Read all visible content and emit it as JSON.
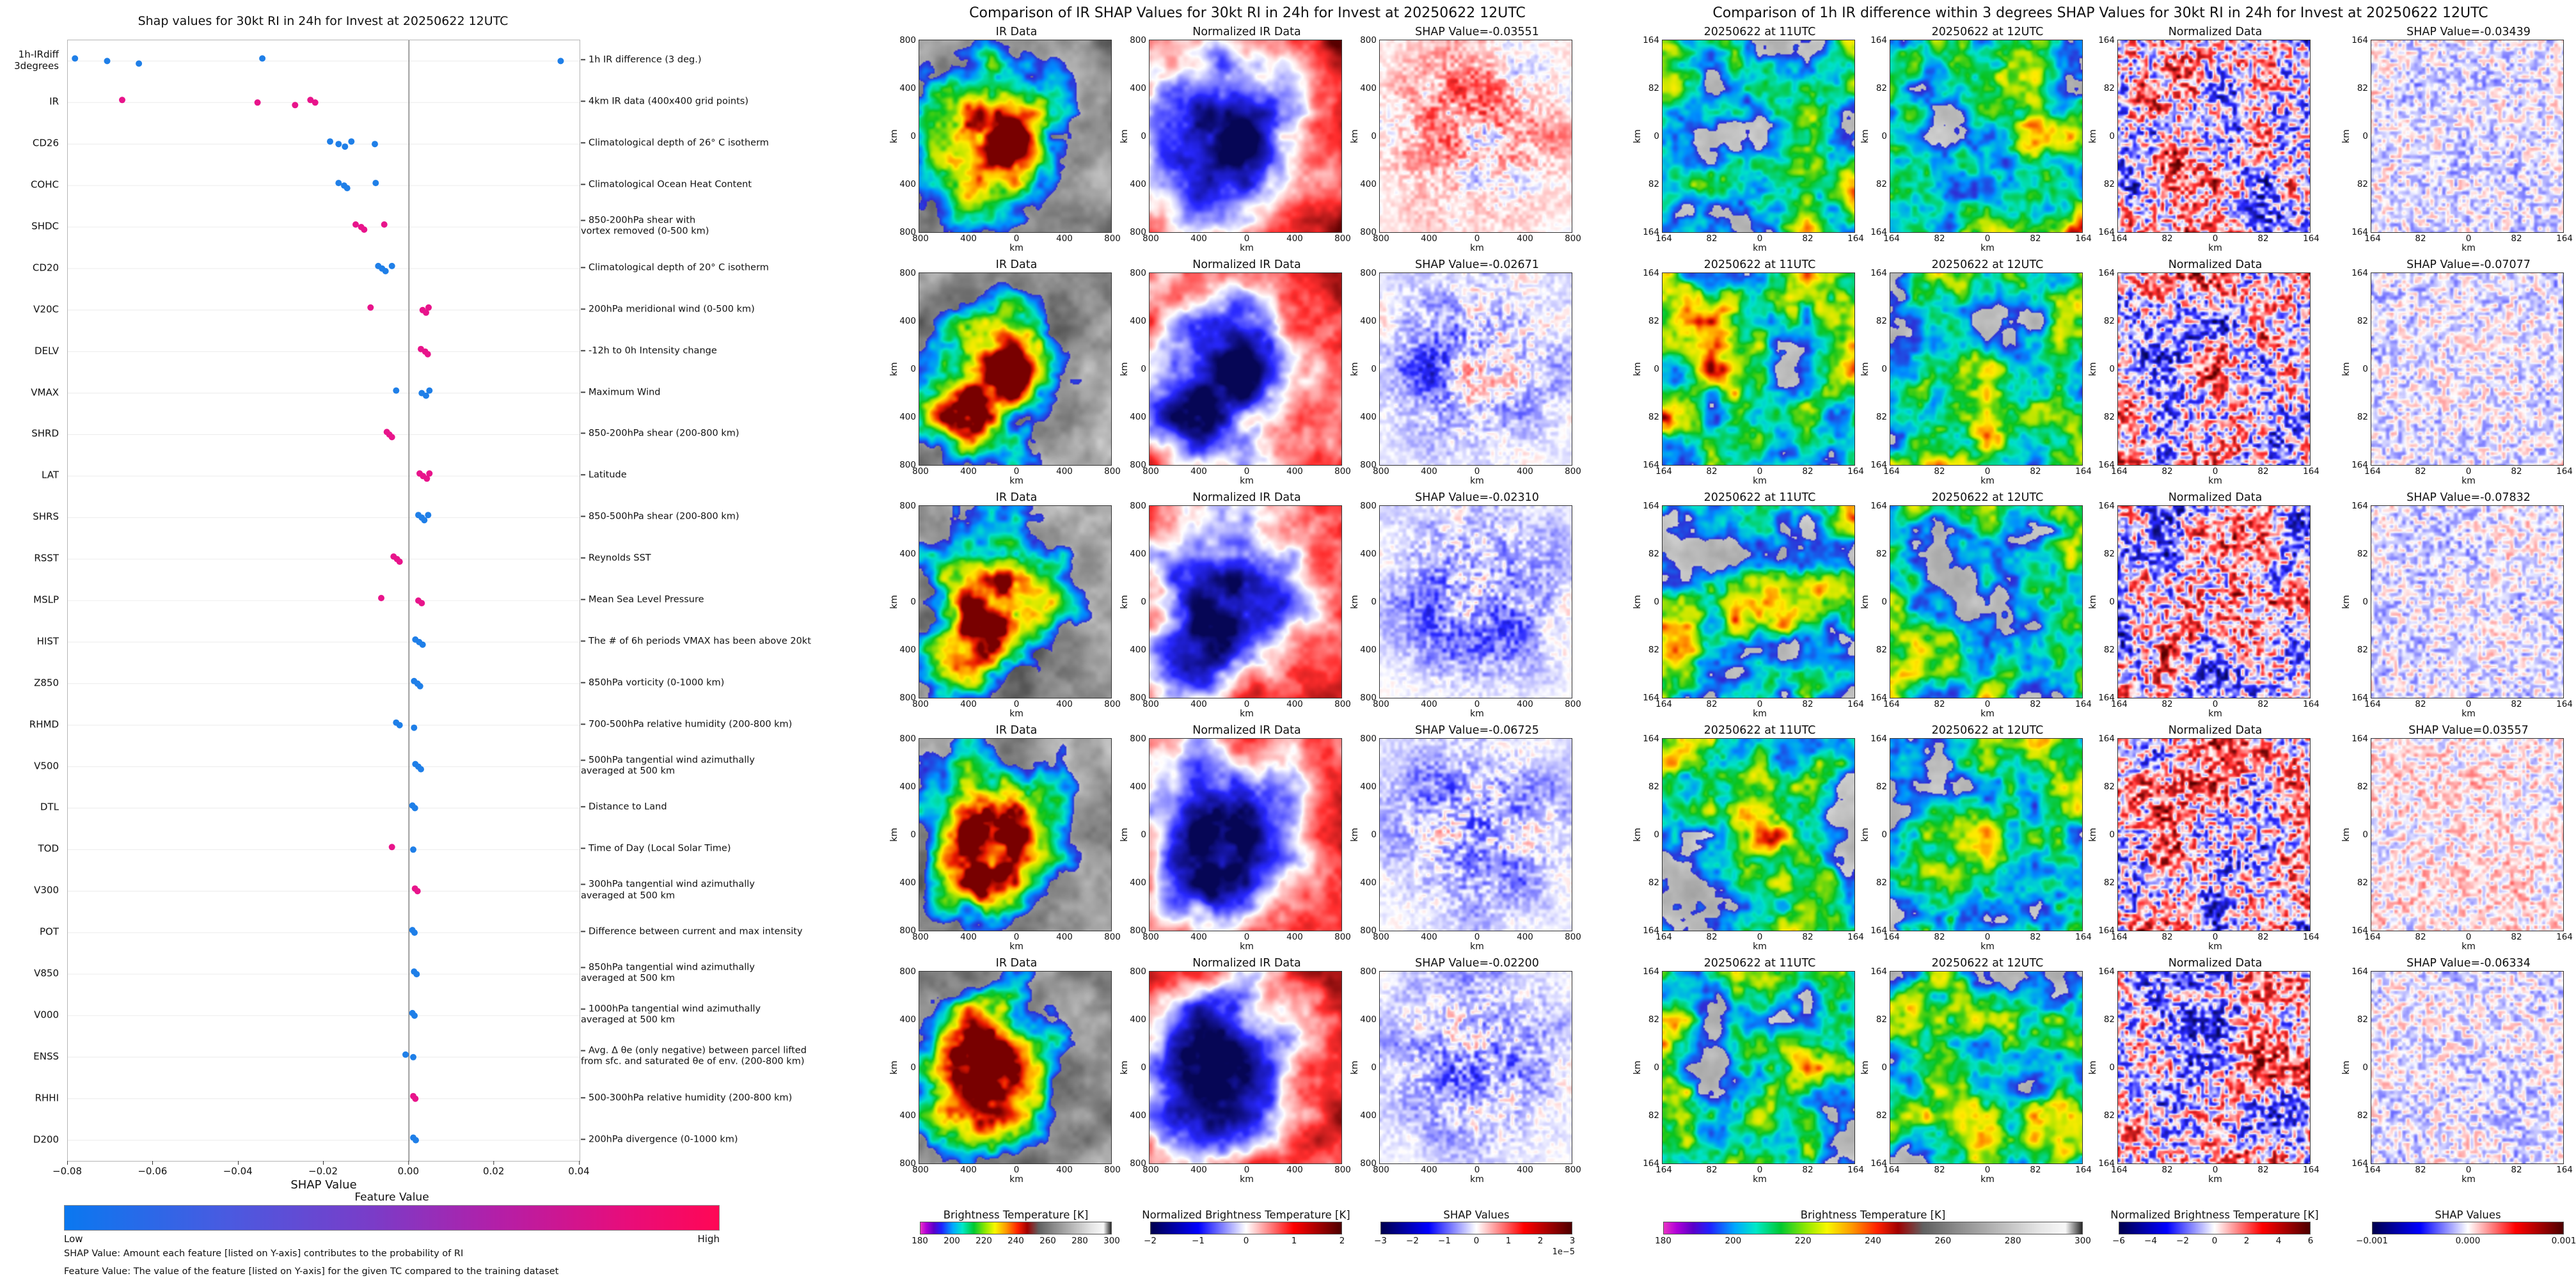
{
  "style": {
    "dot_blue": "#1f7fe8",
    "dot_pink": "#e8148b",
    "zero_line": "#888888",
    "seismic_neg": "#00004d",
    "seismic_pos": "#4d0000",
    "cbar_blue": "#0a78f0",
    "cbar_pink": "#ff0755"
  },
  "chart_data": [
    {
      "type": "scatter",
      "role": "shap-beeswarm-summary",
      "title": "Shap values for 30kt RI in 24h for Invest at 20250622 12UTC",
      "xlabel": "SHAP Value",
      "xlim": [
        -0.08,
        0.04
      ],
      "grid": "on",
      "x_ticks": [
        {
          "label": "−0.08",
          "value": -0.08
        },
        {
          "label": "−0.06",
          "value": -0.06
        },
        {
          "label": "−0.04",
          "value": -0.04
        },
        {
          "label": "−0.02",
          "value": -0.02
        },
        {
          "label": "0.00",
          "value": 0
        },
        {
          "label": "0.02",
          "value": 0.02
        },
        {
          "label": "0.04",
          "value": 0.04
        }
      ],
      "colorbar": {
        "title": "Feature Value",
        "low": "Low",
        "high": "High"
      },
      "footnotes": [
        "SHAP Value: Amount each feature [listed on Y-axis] contributes to the probability of RI",
        "Feature Value: The value of the feature [listed on Y-axis] for the given TC compared to the training dataset"
      ],
      "features": [
        {
          "name": "1h-IRdiff\n3degrees",
          "desc": "1h IR difference (3 deg.)",
          "points": [
            [
              -0.07832,
              0
            ],
            [
              -0.07077,
              0
            ],
            [
              -0.06334,
              0
            ],
            [
              -0.03439,
              0
            ],
            [
              0.03557,
              0
            ]
          ]
        },
        {
          "name": "IR",
          "desc": "4km IR data (400x400 grid points)",
          "points": [
            [
              -0.06725,
              1
            ],
            [
              -0.03551,
              1
            ],
            [
              -0.02671,
              1
            ],
            [
              -0.0231,
              1
            ],
            [
              -0.022,
              1
            ]
          ]
        },
        {
          "name": "CD26",
          "desc": "Climatological depth of 26° C isotherm",
          "points": [
            [
              -0.0185,
              0
            ],
            [
              -0.0165,
              0
            ],
            [
              -0.015,
              0
            ],
            [
              -0.0135,
              0
            ],
            [
              -0.008,
              0
            ]
          ]
        },
        {
          "name": "COHC",
          "desc": "Climatological Ocean Heat Content",
          "points": [
            [
              -0.0165,
              0
            ],
            [
              -0.0152,
              0
            ],
            [
              -0.0145,
              0
            ],
            [
              -0.0078,
              0
            ]
          ]
        },
        {
          "name": "SHDC",
          "desc": "850-200hPa shear with\nvortex removed (0-500 km)",
          "points": [
            [
              -0.0125,
              1
            ],
            [
              -0.0112,
              1
            ],
            [
              -0.0105,
              1
            ],
            [
              -0.0058,
              1
            ]
          ]
        },
        {
          "name": "CD20",
          "desc": "Climatological depth of 20° C isotherm",
          "points": [
            [
              -0.0072,
              0
            ],
            [
              -0.0063,
              0
            ],
            [
              -0.0055,
              0
            ],
            [
              -0.004,
              0
            ]
          ]
        },
        {
          "name": "V20C",
          "desc": "200hPa meridional wind (0-500 km)",
          "points": [
            [
              -0.009,
              1
            ],
            [
              0.0032,
              1
            ],
            [
              0.004,
              1
            ],
            [
              0.0046,
              1
            ]
          ]
        },
        {
          "name": "DELV",
          "desc": "-12h to 0h Intensity change",
          "points": [
            [
              0.0028,
              1
            ],
            [
              0.0038,
              1
            ],
            [
              0.0044,
              1
            ]
          ]
        },
        {
          "name": "VMAX",
          "desc": "Maximum Wind",
          "points": [
            [
              -0.003,
              0
            ],
            [
              0.003,
              0
            ],
            [
              0.004,
              0
            ],
            [
              0.0048,
              0
            ]
          ]
        },
        {
          "name": "SHRD",
          "desc": "850-200hPa shear (200-800 km)",
          "points": [
            [
              -0.0052,
              1
            ],
            [
              -0.0046,
              1
            ],
            [
              -0.004,
              1
            ]
          ]
        },
        {
          "name": "LAT",
          "desc": "Latitude",
          "points": [
            [
              0.0025,
              1
            ],
            [
              0.0033,
              1
            ],
            [
              0.0042,
              1
            ],
            [
              0.0048,
              1
            ]
          ]
        },
        {
          "name": "SHRS",
          "desc": "850-500hPa shear (200-800 km)",
          "points": [
            [
              0.0022,
              0
            ],
            [
              0.003,
              0
            ],
            [
              0.0036,
              0
            ],
            [
              0.0045,
              0
            ]
          ]
        },
        {
          "name": "RSST",
          "desc": "Reynolds SST",
          "points": [
            [
              -0.0036,
              1
            ],
            [
              -0.0028,
              1
            ],
            [
              -0.0022,
              1
            ]
          ]
        },
        {
          "name": "MSLP",
          "desc": "Mean Sea Level Pressure",
          "points": [
            [
              -0.0065,
              1
            ],
            [
              0.0022,
              1
            ],
            [
              0.003,
              1
            ]
          ]
        },
        {
          "name": "HIST",
          "desc": "The # of 6h periods VMAX has been above 20kt",
          "points": [
            [
              0.0015,
              0
            ],
            [
              0.0024,
              0
            ],
            [
              0.0032,
              0
            ]
          ]
        },
        {
          "name": "Z850",
          "desc": "850hPa vorticity (0-1000 km)",
          "points": [
            [
              0.0012,
              0
            ],
            [
              0.002,
              0
            ],
            [
              0.0026,
              0
            ]
          ]
        },
        {
          "name": "RHMD",
          "desc": "700-500hPa relative humidity (200-800 km)",
          "points": [
            [
              -0.003,
              0
            ],
            [
              -0.0022,
              0
            ],
            [
              0.0012,
              0
            ]
          ]
        },
        {
          "name": "V500",
          "desc": "500hPa tangential wind azimuthally\naveraged at 500 km",
          "points": [
            [
              0.0015,
              0
            ],
            [
              0.0022,
              0
            ],
            [
              0.0028,
              0
            ]
          ]
        },
        {
          "name": "DTL",
          "desc": "Distance to Land",
          "points": [
            [
              0.0008,
              0
            ],
            [
              0.0014,
              0
            ]
          ]
        },
        {
          "name": "TOD",
          "desc": "Time of Day (Local Solar Time)",
          "points": [
            [
              -0.004,
              1
            ],
            [
              0.001,
              0
            ]
          ]
        },
        {
          "name": "V300",
          "desc": "300hPa tangential wind azimuthally\naveraged at 500 km",
          "points": [
            [
              0.0014,
              1
            ],
            [
              0.002,
              1
            ]
          ]
        },
        {
          "name": "POT",
          "desc": "Difference between current and max intensity",
          "points": [
            [
              0.0008,
              0
            ],
            [
              0.0013,
              0
            ]
          ]
        },
        {
          "name": "V850",
          "desc": "850hPa tangential wind azimuthally\naveraged at 500 km",
          "points": [
            [
              0.0012,
              0
            ],
            [
              0.0018,
              0
            ]
          ]
        },
        {
          "name": "V000",
          "desc": "1000hPa tangential wind azimuthally\naveraged at 500 km",
          "points": [
            [
              0.0008,
              0
            ],
            [
              0.0013,
              0
            ]
          ]
        },
        {
          "name": "ENSS",
          "desc": "Avg. Δ θe (only negative) between parcel lifted\nfrom sfc. and saturated θe of env. (200-800 km)",
          "points": [
            [
              -0.0008,
              0
            ],
            [
              0.001,
              0
            ]
          ]
        },
        {
          "name": "RHHI",
          "desc": "500-300hPa relative humidity (200-800 km)",
          "points": [
            [
              0.001,
              1
            ],
            [
              0.0015,
              1
            ]
          ]
        },
        {
          "name": "D200",
          "desc": "200hPa divergence (0-1000 km)",
          "points": [
            [
              0.001,
              0
            ],
            [
              0.0016,
              0
            ]
          ]
        }
      ]
    },
    {
      "type": "heatmap",
      "role": "ir-shap-comparison-grid",
      "title": "Comparison of IR SHAP Values for 30kt RI in 24h for Invest at 20250622 12UTC",
      "column_titles": [
        "IR Data",
        "Normalized IR Data"
      ],
      "row_shap_titles": [
        "SHAP Value=-0.03551",
        "SHAP Value=-0.02671",
        "SHAP Value=-0.02310",
        "SHAP Value=-0.06725",
        "SHAP Value=-0.02200"
      ],
      "shap_values": [
        -0.03551,
        -0.02671,
        -0.0231,
        -0.06725,
        -0.022
      ],
      "axis_label": "km",
      "x_ticks": [
        "800",
        "400",
        "0",
        "400",
        "800"
      ],
      "y_ticks": [
        "800",
        "400",
        "0",
        "400",
        "800"
      ],
      "axis_range_km": [
        -800,
        800
      ],
      "colorbars": [
        {
          "title": "Brightness Temperature [K]",
          "ticks": [
            "180",
            "200",
            "220",
            "240",
            "260",
            "280",
            "300"
          ]
        },
        {
          "title": "Normalized Brightness Temperature [K]",
          "ticks": [
            "−2",
            "−1",
            "0",
            "1",
            "2"
          ]
        },
        {
          "title": "SHAP Values",
          "ticks": [
            "−3",
            "−2",
            "−1",
            "0",
            "1",
            "2",
            "3"
          ],
          "scale_note": "1e−5"
        }
      ]
    },
    {
      "type": "heatmap",
      "role": "ir-difference-shap-comparison-grid",
      "title": "Comparison of 1h IR difference within 3 degrees SHAP Values for 30kt RI in 24h for Invest at 20250622 12UTC",
      "column_titles": [
        "20250622 at 11UTC",
        "20250622 at 12UTC",
        "Normalized Data"
      ],
      "row_shap_titles": [
        "SHAP Value=-0.03439",
        "SHAP Value=-0.07077",
        "SHAP Value=-0.07832",
        "SHAP Value=0.03557",
        "SHAP Value=-0.06334"
      ],
      "shap_values": [
        -0.03439,
        -0.07077,
        -0.07832,
        0.03557,
        -0.06334
      ],
      "axis_label": "km",
      "x_ticks": [
        "164",
        "82",
        "0",
        "82",
        "164"
      ],
      "y_ticks": [
        "164",
        "82",
        "0",
        "82",
        "164"
      ],
      "axis_range_km": [
        -164,
        164
      ],
      "colorbars": [
        {
          "title": "Brightness Temperature [K]",
          "ticks": [
            "180",
            "200",
            "220",
            "240",
            "260",
            "280",
            "300"
          ]
        },
        {
          "title": "Normalized Brightness Temperature [K]",
          "ticks": [
            "−6",
            "−4",
            "−2",
            "0",
            "2",
            "4",
            "6"
          ]
        },
        {
          "title": "SHAP Values",
          "ticks": [
            "−0.001",
            "0.000",
            "0.001"
          ]
        }
      ]
    }
  ]
}
